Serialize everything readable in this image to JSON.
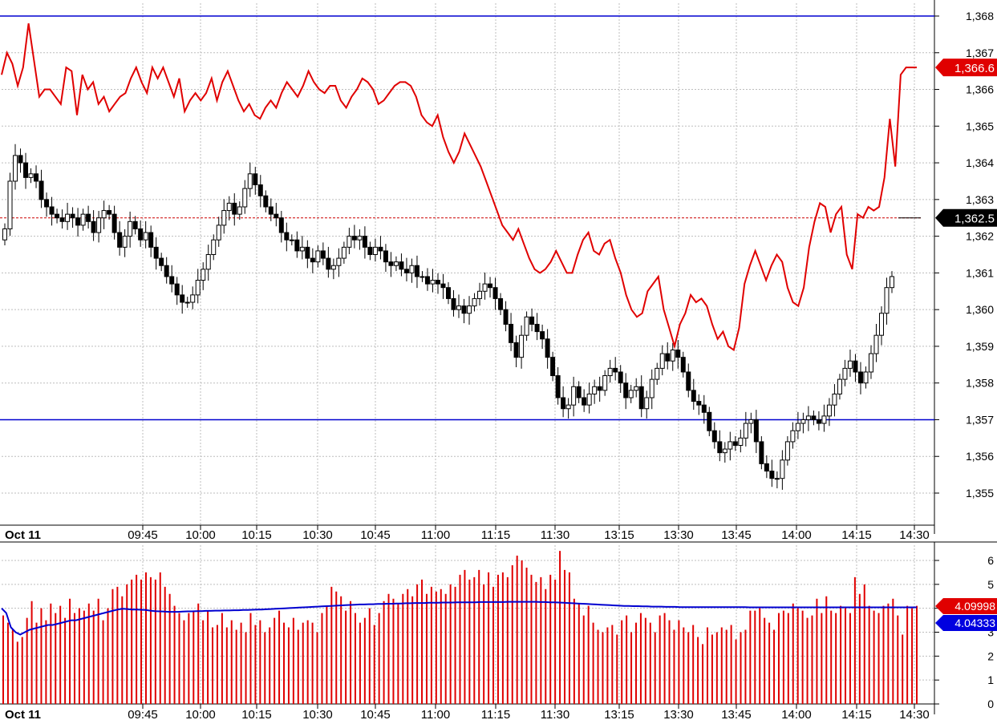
{
  "chart_data": [
    {
      "type": "candlestick",
      "panel": "price",
      "y_ticks": [
        "1,355",
        "1,356",
        "1,357",
        "1,358",
        "1,359",
        "1,360",
        "1,361",
        "1,362",
        "1,363",
        "1,364",
        "1,365",
        "1,366",
        "1,367",
        "1,368"
      ],
      "ylim": [
        1354.2,
        1368.4
      ],
      "x_tick_labels": [
        "Oct 11",
        "09:45",
        "10:00",
        "10:15",
        "10:30",
        "10:45",
        "11:00",
        "11:15",
        "11:30",
        "13:15",
        "13:30",
        "13:45",
        "14:00",
        "14:15",
        "14:30"
      ],
      "horizontal_lines": [
        1368.0,
        1357.0
      ],
      "reference_line": 1362.5,
      "price_badge": "1,362.5",
      "overlay_badge": "1,366.6",
      "price_series": [
        1362.2,
        1363.5,
        1364.2,
        1364.0,
        1363.6,
        1363.7,
        1363.5,
        1363.0,
        1362.8,
        1362.6,
        1362.5,
        1362.4,
        1362.6,
        1362.5,
        1362.3,
        1362.6,
        1362.4,
        1362.1,
        1362.5,
        1362.7,
        1362.6,
        1362.1,
        1361.7,
        1362.0,
        1362.4,
        1362.2,
        1361.9,
        1362.1,
        1361.7,
        1361.4,
        1361.2,
        1360.9,
        1360.7,
        1360.4,
        1360.2,
        1360.2,
        1360.4,
        1360.8,
        1361.1,
        1361.5,
        1361.9,
        1362.3,
        1362.7,
        1362.9,
        1362.6,
        1362.8,
        1363.3,
        1363.7,
        1363.4,
        1363.1,
        1362.8,
        1362.6,
        1362.5,
        1362.1,
        1361.9,
        1361.9,
        1361.6,
        1361.7,
        1361.4,
        1361.3,
        1361.6,
        1361.4,
        1361.1,
        1361.2,
        1361.4,
        1361.7,
        1362.0,
        1361.9,
        1362.0,
        1361.7,
        1361.5,
        1361.7,
        1361.6,
        1361.3,
        1361.2,
        1361.3,
        1361.1,
        1361.0,
        1361.2,
        1360.9,
        1360.9,
        1360.7,
        1360.8,
        1360.7,
        1360.6,
        1360.3,
        1360.0,
        1360.1,
        1359.9,
        1360.1,
        1360.3,
        1360.5,
        1360.7,
        1360.6,
        1360.3,
        1360.0,
        1359.6,
        1359.1,
        1358.7,
        1359.3,
        1359.8,
        1359.6,
        1359.4,
        1359.2,
        1358.7,
        1358.2,
        1357.6,
        1357.3,
        1357.4,
        1357.9,
        1357.6,
        1357.4,
        1357.7,
        1357.9,
        1357.8,
        1358.2,
        1358.4,
        1358.3,
        1358.0,
        1357.6,
        1357.8,
        1357.9,
        1357.3,
        1357.6,
        1358.1,
        1358.4,
        1358.8,
        1358.6,
        1358.9,
        1358.7,
        1358.3,
        1357.8,
        1357.5,
        1357.4,
        1357.2,
        1356.7,
        1356.4,
        1356.1,
        1356.2,
        1356.4,
        1356.3,
        1356.5,
        1356.9,
        1357.0,
        1356.4,
        1355.8,
        1355.6,
        1355.4,
        1355.4,
        1355.9,
        1356.4,
        1356.7,
        1356.9,
        1357.0,
        1357.1,
        1357.0,
        1356.9,
        1357.1,
        1357.4,
        1357.7,
        1358.1,
        1358.4,
        1358.6,
        1358.3,
        1358.0,
        1358.3,
        1358.8,
        1359.3,
        1359.9,
        1360.6,
        1360.9
      ],
      "overlay_series": [
        1366.4,
        1367.0,
        1366.7,
        1366.1,
        1366.6,
        1367.8,
        1366.8,
        1365.8,
        1366.0,
        1366.0,
        1365.8,
        1365.6,
        1366.6,
        1366.5,
        1365.3,
        1366.4,
        1366.0,
        1366.2,
        1365.6,
        1365.8,
        1365.4,
        1365.6,
        1365.8,
        1365.9,
        1366.3,
        1366.6,
        1366.2,
        1365.9,
        1366.6,
        1366.3,
        1366.6,
        1366.2,
        1365.8,
        1366.3,
        1365.4,
        1365.7,
        1365.9,
        1365.7,
        1365.9,
        1366.3,
        1365.7,
        1366.2,
        1366.5,
        1366.1,
        1365.7,
        1365.4,
        1365.6,
        1365.3,
        1365.2,
        1365.5,
        1365.7,
        1365.5,
        1365.9,
        1366.2,
        1366.0,
        1365.8,
        1366.1,
        1366.5,
        1366.2,
        1366.0,
        1365.9,
        1366.1,
        1366.1,
        1365.7,
        1365.5,
        1365.8,
        1366.0,
        1366.3,
        1366.2,
        1366.0,
        1365.6,
        1365.7,
        1365.9,
        1366.1,
        1366.2,
        1366.2,
        1366.1,
        1365.8,
        1365.3,
        1365.1,
        1365.0,
        1365.3,
        1364.7,
        1364.3,
        1364.0,
        1364.3,
        1364.8,
        1364.5,
        1364.2,
        1363.9,
        1363.5,
        1363.1,
        1362.7,
        1362.3,
        1362.1,
        1361.9,
        1362.2,
        1361.8,
        1361.4,
        1361.1,
        1361.0,
        1361.1,
        1361.3,
        1361.6,
        1361.3,
        1361.0,
        1361.0,
        1361.5,
        1361.9,
        1362.1,
        1361.6,
        1361.5,
        1361.8,
        1361.9,
        1361.4,
        1361.0,
        1360.4,
        1360.0,
        1359.8,
        1359.9,
        1360.5,
        1360.7,
        1360.9,
        1360.0,
        1359.5,
        1359.0,
        1359.6,
        1359.9,
        1360.4,
        1360.2,
        1360.3,
        1360.1,
        1359.6,
        1359.2,
        1359.4,
        1359.0,
        1358.9,
        1359.5,
        1360.7,
        1361.2,
        1361.6,
        1361.2,
        1360.8,
        1361.2,
        1361.5,
        1361.3,
        1360.6,
        1360.2,
        1360.1,
        1360.6,
        1361.7,
        1362.4,
        1362.9,
        1362.8,
        1362.1,
        1362.6,
        1362.8,
        1361.5,
        1361.1,
        1362.6,
        1362.5,
        1362.8,
        1362.7,
        1362.8,
        1363.6,
        1365.2,
        1363.9,
        1366.4,
        1366.6,
        1366.6,
        1366.6
      ]
    },
    {
      "type": "bar",
      "panel": "volume",
      "y_ticks": [
        "0",
        "1",
        "2",
        "3",
        "4",
        "5",
        "6"
      ],
      "ylim": [
        0,
        6.6
      ],
      "x_tick_labels": [
        "Oct 11",
        "09:45",
        "10:00",
        "10:15",
        "10:30",
        "10:45",
        "11:00",
        "11:15",
        "11:30",
        "13:15",
        "13:30",
        "13:45",
        "14:00",
        "14:15",
        "14:30"
      ],
      "bar_badge": "4.09998",
      "average_badge": "4.04333",
      "values": [
        3.7,
        3.4,
        3.1,
        2.6,
        2.8,
        3.6,
        4.3,
        3.4,
        4.0,
        3.5,
        4.2,
        3.8,
        4.1,
        3.6,
        4.4,
        3.8,
        4.0,
        3.9,
        4.2,
        3.9,
        4.4,
        3.5,
        4.0,
        4.8,
        4.9,
        4.5,
        5.0,
        5.2,
        5.4,
        5.2,
        5.5,
        5.3,
        5.2,
        5.5,
        4.9,
        4.6,
        4.1,
        3.8,
        3.5,
        3.8,
        3.9,
        4.2,
        3.5,
        3.9,
        3.2,
        3.3,
        3.8,
        3.2,
        3.5,
        3.1,
        3.4,
        3.0,
        3.8,
        3.3,
        3.5,
        3.0,
        3.2,
        3.6,
        3.9,
        3.4,
        3.2,
        3.6,
        3.1,
        3.4,
        3.5,
        3.4,
        3.0,
        3.8,
        4.1,
        4.9,
        4.7,
        4.5,
        3.9,
        4.3,
        3.8,
        3.4,
        3.6,
        4.0,
        3.3,
        3.8,
        4.3,
        4.6,
        4.4,
        4.2,
        4.6,
        4.8,
        4.5,
        5.0,
        5.2,
        4.6,
        4.9,
        4.7,
        4.8,
        4.6,
        5.0,
        4.9,
        5.4,
        5.6,
        5.2,
        5.3,
        5.6,
        5.0,
        5.5,
        4.9,
        5.4,
        5.5,
        5.3,
        5.8,
        6.2,
        6.0,
        5.7,
        5.4,
        5.1,
        5.3,
        4.8,
        5.4,
        5.2,
        6.4,
        5.6,
        5.5,
        4.4,
        4.2,
        3.7,
        4.1,
        3.4,
        3.1,
        3.0,
        3.2,
        3.3,
        2.9,
        3.5,
        3.7,
        3.0,
        3.4,
        3.8,
        3.6,
        3.4,
        3.0,
        3.7,
        3.8,
        3.5,
        3.1,
        3.5,
        3.2,
        3.0,
        3.3,
        2.8,
        2.5,
        3.2,
        2.9,
        3.0,
        3.2,
        3.1,
        3.3,
        2.7,
        3.0,
        3.1,
        3.9,
        3.9,
        4.0,
        3.6,
        3.4,
        3.1,
        3.8,
        3.9,
        3.8,
        4.2,
        4.0,
        3.9,
        3.6,
        3.7,
        4.4,
        3.8,
        4.5,
        3.9,
        3.8,
        4.1,
        4.0,
        3.8,
        5.3,
        4.6,
        5.0,
        4.1,
        3.9,
        3.8,
        4.1,
        4.2,
        4.4,
        3.7,
        2.9,
        4.1,
        4.0,
        4.1
      ],
      "average_series": [
        4.0,
        3.8,
        3.2,
        3.0,
        2.9,
        3.0,
        3.1,
        3.15,
        3.2,
        3.25,
        3.3,
        3.3,
        3.35,
        3.4,
        3.45,
        3.5,
        3.5,
        3.55,
        3.6,
        3.65,
        3.7,
        3.75,
        3.8,
        3.85,
        3.9,
        3.95,
        3.98,
        3.97,
        3.95,
        3.95,
        3.94,
        3.93,
        3.9,
        3.88,
        3.87,
        3.86,
        3.85,
        3.85,
        3.85,
        3.86,
        3.87,
        3.87,
        3.88,
        3.88,
        3.89,
        3.89,
        3.9,
        3.9,
        3.91,
        3.91,
        3.92,
        3.92,
        3.93,
        3.93,
        3.94,
        3.95,
        3.95,
        3.96,
        3.97,
        3.98,
        3.99,
        4.0,
        4.01,
        4.02,
        4.03,
        4.04,
        4.05,
        4.06,
        4.07,
        4.08,
        4.09,
        4.1,
        4.11,
        4.12,
        4.13,
        4.14,
        4.15,
        4.16,
        4.16,
        4.17,
        4.17,
        4.18,
        4.18,
        4.19,
        4.19,
        4.2,
        4.2,
        4.21,
        4.21,
        4.22,
        4.22,
        4.22,
        4.23,
        4.23,
        4.23,
        4.24,
        4.24,
        4.24,
        4.25,
        4.25,
        4.25,
        4.25,
        4.25,
        4.26,
        4.26,
        4.26,
        4.26,
        4.26,
        4.26,
        4.27,
        4.27,
        4.27,
        4.27,
        4.27,
        4.27,
        4.27,
        4.26,
        4.26,
        4.25,
        4.25,
        4.24,
        4.23,
        4.22,
        4.21,
        4.2,
        4.19,
        4.18,
        4.17,
        4.16,
        4.15,
        4.14,
        4.13,
        4.12,
        4.11,
        4.1,
        4.1,
        4.09,
        4.09,
        4.08,
        4.08,
        4.07,
        4.07,
        4.07,
        4.06,
        4.06,
        4.06,
        4.05,
        4.05,
        4.05,
        4.05,
        4.05,
        4.05,
        4.05,
        4.05,
        4.05,
        4.05,
        4.05,
        4.05,
        4.05,
        4.05,
        4.05,
        4.04,
        4.04,
        4.04,
        4.04,
        4.04,
        4.04,
        4.04,
        4.04,
        4.04,
        4.04,
        4.04,
        4.04,
        4.04,
        4.04,
        4.04,
        4.04,
        4.04,
        4.04,
        4.04,
        4.04,
        4.04,
        4.04,
        4.04,
        4.04,
        4.04,
        4.04,
        4.04,
        4.04,
        4.04,
        4.04,
        4.04,
        4.04,
        4.04,
        4.04,
        4.04,
        4.04,
        4.04
      ]
    }
  ],
  "colors": {
    "candle_up": "#ffffff",
    "candle_down": "#000000",
    "overlay_line": "#e00000",
    "horizontal_line": "#0000d0",
    "reference_line": "#cc0000",
    "grid": "#bdbdbd",
    "volume_bar": "#e00000",
    "volume_average": "#0000d0",
    "badge_dark": "#000000",
    "badge_red": "#e00000",
    "badge_blue": "#0000e0"
  }
}
